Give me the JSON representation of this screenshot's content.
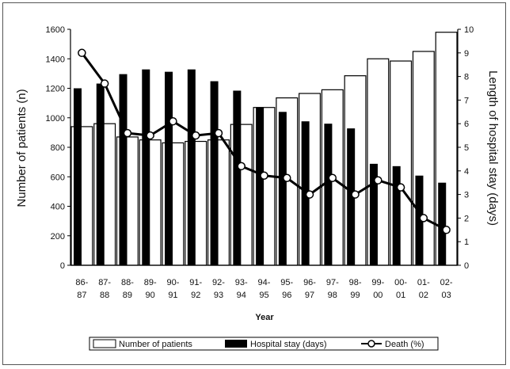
{
  "chart_data": {
    "type": "bar",
    "xlabel": "Year",
    "ylabel_left": "Number of patients (n)",
    "ylabel_right": "Length of hospital stay (days)",
    "ylim_left": [
      0,
      1600
    ],
    "ylim_right": [
      0,
      10
    ],
    "left_ticks": [
      "0",
      "200",
      "400",
      "600",
      "800",
      "1000",
      "1200",
      "1400",
      "1600"
    ],
    "right_ticks": [
      "0",
      "1",
      "2",
      "3",
      "4",
      "5",
      "6",
      "7",
      "8",
      "9",
      "10"
    ],
    "categories": [
      [
        "86-",
        "87"
      ],
      [
        "87-",
        "88"
      ],
      [
        "88-",
        "89"
      ],
      [
        "89-",
        "90"
      ],
      [
        "90-",
        "91"
      ],
      [
        "91-",
        "92"
      ],
      [
        "92-",
        "93"
      ],
      [
        "93-",
        "94"
      ],
      [
        "94-",
        "95"
      ],
      [
        "95-",
        "96"
      ],
      [
        "96-",
        "97"
      ],
      [
        "97-",
        "98"
      ],
      [
        "98-",
        "99"
      ],
      [
        "99-",
        "00"
      ],
      [
        "00-",
        "01"
      ],
      [
        "01-",
        "02"
      ],
      [
        "02-",
        "03"
      ]
    ],
    "series": [
      {
        "name": "Number of patients",
        "axis": "left",
        "style": "open-bar",
        "values": [
          940,
          960,
          870,
          850,
          830,
          840,
          850,
          955,
          1070,
          1135,
          1165,
          1190,
          1285,
          1400,
          1385,
          1450,
          1580
        ]
      },
      {
        "name": "Hospital stay (days)",
        "axis": "right",
        "style": "filled-bar",
        "values": [
          7.5,
          7.7,
          8.1,
          8.3,
          8.2,
          8.3,
          7.8,
          7.4,
          6.7,
          6.5,
          6.1,
          6.0,
          5.8,
          4.3,
          4.2,
          3.8,
          3.5
        ]
      },
      {
        "name": "Death (%)",
        "axis": "right",
        "style": "line-with-open-markers",
        "values": [
          9.0,
          7.7,
          5.6,
          5.5,
          6.1,
          5.5,
          5.6,
          4.2,
          3.8,
          3.7,
          3.0,
          3.7,
          3.0,
          3.6,
          3.3,
          2.0,
          1.5
        ]
      }
    ],
    "legend_position": "bottom-center",
    "grid": false,
    "colors": {
      "open_bar_fill": "#ffffff",
      "filled_bar": "#000000",
      "line": "#000000",
      "axis": "#000000"
    }
  }
}
